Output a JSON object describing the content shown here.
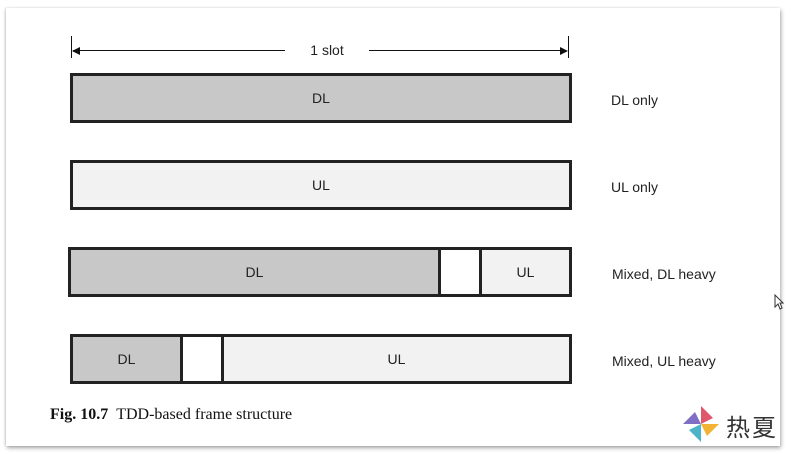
{
  "slot_label": "1 slot",
  "rows": [
    {
      "label": "DL only",
      "segments": [
        {
          "kind": "DL",
          "text": "DL"
        }
      ]
    },
    {
      "label": "UL only",
      "segments": [
        {
          "kind": "UL",
          "text": "UL"
        }
      ]
    },
    {
      "label": "Mixed, DL heavy",
      "segments": [
        {
          "kind": "DL",
          "text": "DL"
        },
        {
          "kind": "GAP",
          "text": ""
        },
        {
          "kind": "UL",
          "text": "UL"
        }
      ]
    },
    {
      "label": "Mixed, UL heavy",
      "segments": [
        {
          "kind": "DL",
          "text": "DL"
        },
        {
          "kind": "GAP",
          "text": ""
        },
        {
          "kind": "UL",
          "text": "UL"
        }
      ]
    }
  ],
  "caption": {
    "number": "Fig. 10.7",
    "text": "TDD-based frame structure"
  },
  "watermark": {
    "text": "热夏"
  },
  "colors": {
    "dl": "#c8c8c8",
    "ul": "#f2f2f2",
    "border": "#222222"
  }
}
